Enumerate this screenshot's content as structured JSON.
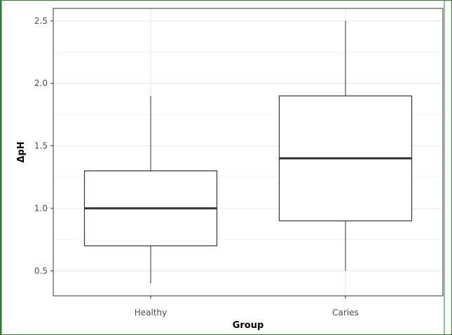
{
  "chart_data": {
    "type": "box",
    "xlabel": "Group",
    "ylabel": "ΔpH",
    "ylim": [
      0.3,
      2.6
    ],
    "yticks": [
      "0.5",
      "1.0",
      "1.5",
      "2.0",
      "2.5"
    ],
    "grid": true,
    "categories": [
      "Healthy",
      "Caries"
    ],
    "series": [
      {
        "category": "Healthy",
        "min": 0.4,
        "q1": 0.7,
        "median": 1.0,
        "q3": 1.3,
        "max": 1.9
      },
      {
        "category": "Caries",
        "min": 0.5,
        "q1": 0.9,
        "median": 1.4,
        "q3": 1.9,
        "max": 2.5
      }
    ]
  },
  "colors": {
    "frame_border": "#2e7d32",
    "panel_border": "#333333",
    "grid_major": "#ebebeb",
    "grid_minor": "#f5f5f5",
    "box_line": "#333333"
  }
}
